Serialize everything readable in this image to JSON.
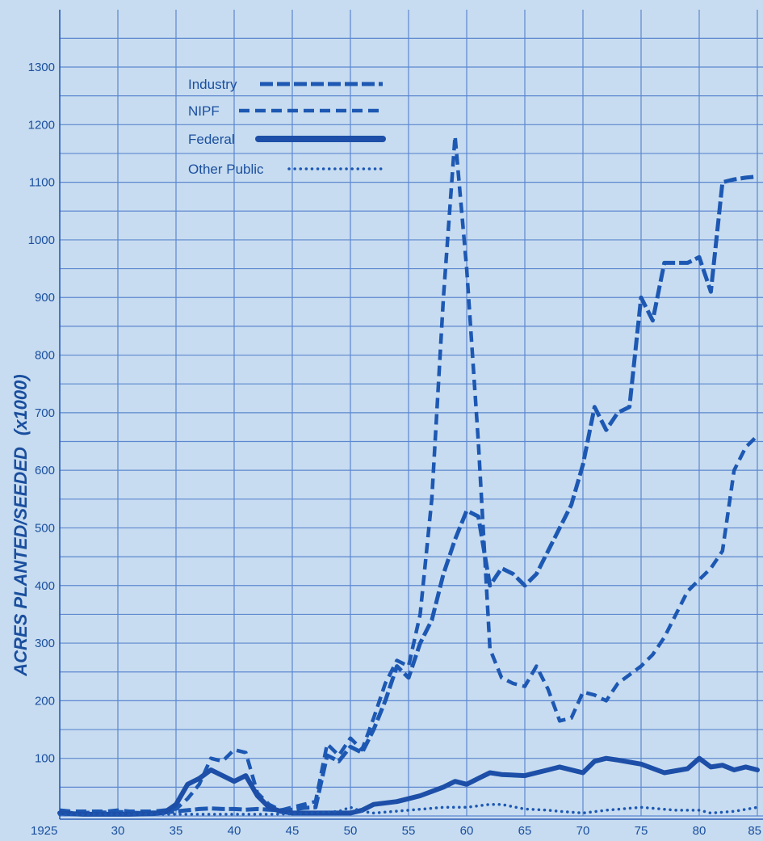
{
  "chart_data": {
    "type": "line",
    "ylabel": "ACRES PLANTED/SEEDED",
    "ylabel_unit": "(x1000)",
    "xlim": [
      1925,
      1985
    ],
    "ylim": [
      0,
      1300
    ],
    "grid": true,
    "legend_position": "top-left",
    "x_ticks": [
      {
        "value": 1925,
        "label": "1925"
      },
      {
        "value": 1930,
        "label": "30"
      },
      {
        "value": 1935,
        "label": "35"
      },
      {
        "value": 1940,
        "label": "40"
      },
      {
        "value": 1945,
        "label": "45"
      },
      {
        "value": 1950,
        "label": "50"
      },
      {
        "value": 1955,
        "label": "55"
      },
      {
        "value": 1960,
        "label": "60"
      },
      {
        "value": 1965,
        "label": "65"
      },
      {
        "value": 1970,
        "label": "70"
      },
      {
        "value": 1975,
        "label": "75"
      },
      {
        "value": 1980,
        "label": "80"
      },
      {
        "value": 1985,
        "label": "85"
      }
    ],
    "y_ticks": [
      100,
      200,
      300,
      400,
      500,
      600,
      700,
      800,
      900,
      1000,
      1100,
      1200,
      1300
    ],
    "series": [
      {
        "name": "Industry",
        "style": "dashed-heavy",
        "color": "#1d58b3",
        "x": [
          1925,
          1926,
          1927,
          1928,
          1929,
          1930,
          1931,
          1932,
          1933,
          1934,
          1935,
          1936,
          1937,
          1938,
          1939,
          1940,
          1941,
          1942,
          1943,
          1944,
          1945,
          1946,
          1947,
          1948,
          1949,
          1950,
          1951,
          1952,
          1953,
          1954,
          1955,
          1956,
          1957,
          1958,
          1959,
          1960,
          1961,
          1962,
          1963,
          1964,
          1965,
          1966,
          1967,
          1968,
          1969,
          1970,
          1971,
          1972,
          1973,
          1974,
          1975,
          1976,
          1977,
          1978,
          1979,
          1980,
          1981,
          1982,
          1983,
          1984,
          1985
        ],
        "y": [
          8,
          5,
          5,
          6,
          6,
          7,
          6,
          5,
          6,
          6,
          8,
          10,
          12,
          13,
          12,
          12,
          11,
          12,
          11,
          10,
          11,
          14,
          15,
          105,
          95,
          120,
          110,
          150,
          200,
          260,
          240,
          300,
          340,
          420,
          480,
          530,
          520,
          400,
          430,
          420,
          400,
          420,
          460,
          500,
          540,
          610,
          710,
          670,
          700,
          710,
          900,
          860,
          960,
          960,
          960,
          970,
          910,
          1100,
          1105,
          1108,
          1110
        ]
      },
      {
        "name": "NIPF",
        "style": "dashed",
        "color": "#1d58b3",
        "x": [
          1925,
          1926,
          1927,
          1928,
          1929,
          1930,
          1931,
          1932,
          1933,
          1934,
          1935,
          1936,
          1937,
          1938,
          1939,
          1940,
          1941,
          1942,
          1943,
          1944,
          1945,
          1946,
          1947,
          1948,
          1949,
          1950,
          1951,
          1952,
          1953,
          1954,
          1955,
          1956,
          1957,
          1958,
          1959,
          1960,
          1961,
          1962,
          1963,
          1964,
          1965,
          1966,
          1967,
          1968,
          1969,
          1970,
          1971,
          1972,
          1973,
          1974,
          1975,
          1976,
          1977,
          1978,
          1979,
          1980,
          1981,
          1982,
          1983,
          1984,
          1985
        ],
        "y": [
          10,
          8,
          8,
          8,
          8,
          10,
          8,
          8,
          8,
          10,
          12,
          30,
          55,
          100,
          95,
          115,
          110,
          40,
          20,
          10,
          15,
          20,
          25,
          125,
          105,
          135,
          115,
          170,
          230,
          270,
          260,
          350,
          550,
          900,
          1180,
          950,
          650,
          290,
          240,
          230,
          225,
          260,
          220,
          165,
          170,
          215,
          210,
          200,
          230,
          245,
          260,
          280,
          310,
          350,
          390,
          410,
          430,
          460,
          600,
          640,
          660
        ]
      },
      {
        "name": "Federal",
        "style": "solid",
        "color": "#1d4fa8",
        "x": [
          1925,
          1927,
          1929,
          1931,
          1933,
          1934,
          1935,
          1936,
          1937,
          1938,
          1939,
          1940,
          1941,
          1942,
          1943,
          1944,
          1945,
          1946,
          1947,
          1948,
          1949,
          1950,
          1951,
          1952,
          1954,
          1956,
          1958,
          1959,
          1960,
          1961,
          1962,
          1963,
          1965,
          1967,
          1968,
          1970,
          1971,
          1972,
          1973,
          1975,
          1977,
          1979,
          1980,
          1981,
          1982,
          1983,
          1984,
          1985
        ],
        "y": [
          5,
          3,
          3,
          3,
          4,
          6,
          20,
          55,
          65,
          80,
          70,
          60,
          70,
          35,
          15,
          8,
          5,
          5,
          5,
          5,
          5,
          5,
          10,
          20,
          25,
          35,
          50,
          60,
          55,
          65,
          75,
          72,
          70,
          80,
          85,
          75,
          95,
          100,
          97,
          90,
          75,
          82,
          100,
          85,
          88,
          80,
          85,
          80
        ]
      },
      {
        "name": "Other Public",
        "style": "dotted",
        "color": "#1d58b3",
        "x": [
          1925,
          1928,
          1931,
          1934,
          1937,
          1940,
          1943,
          1946,
          1949,
          1950,
          1951,
          1952,
          1955,
          1958,
          1960,
          1962,
          1963,
          1965,
          1967,
          1968,
          1970,
          1972,
          1975,
          1978,
          1980,
          1981,
          1983,
          1985
        ],
        "y": [
          2,
          3,
          3,
          3,
          3,
          3,
          3,
          4,
          8,
          15,
          8,
          5,
          10,
          15,
          15,
          20,
          20,
          12,
          10,
          8,
          5,
          10,
          15,
          10,
          10,
          5,
          8,
          15
        ]
      }
    ]
  }
}
